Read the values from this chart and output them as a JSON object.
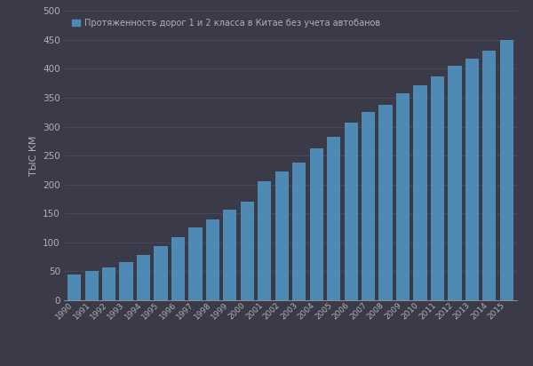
{
  "years": [
    1990,
    1991,
    1992,
    1993,
    1994,
    1995,
    1996,
    1997,
    1998,
    1999,
    2000,
    2001,
    2002,
    2003,
    2004,
    2005,
    2006,
    2007,
    2008,
    2009,
    2010,
    2011,
    2012,
    2013,
    2014,
    2015
  ],
  "values": [
    44,
    50,
    56,
    66,
    78,
    93,
    109,
    125,
    140,
    157,
    170,
    205,
    222,
    238,
    262,
    282,
    307,
    325,
    337,
    358,
    372,
    387,
    405,
    417,
    432,
    450
  ],
  "bar_color": "#4f8ab5",
  "bg_color": "#3a3a48",
  "grid_color": "#4a4a5a",
  "text_color": "#b0b0b8",
  "ylabel": "ТЫС КМ",
  "legend_label": "Протяженность дорог 1 и 2 класса в Китае без учета автобанов",
  "ylim": [
    0,
    500
  ],
  "yticks": [
    0,
    50,
    100,
    150,
    200,
    250,
    300,
    350,
    400,
    450,
    500
  ]
}
